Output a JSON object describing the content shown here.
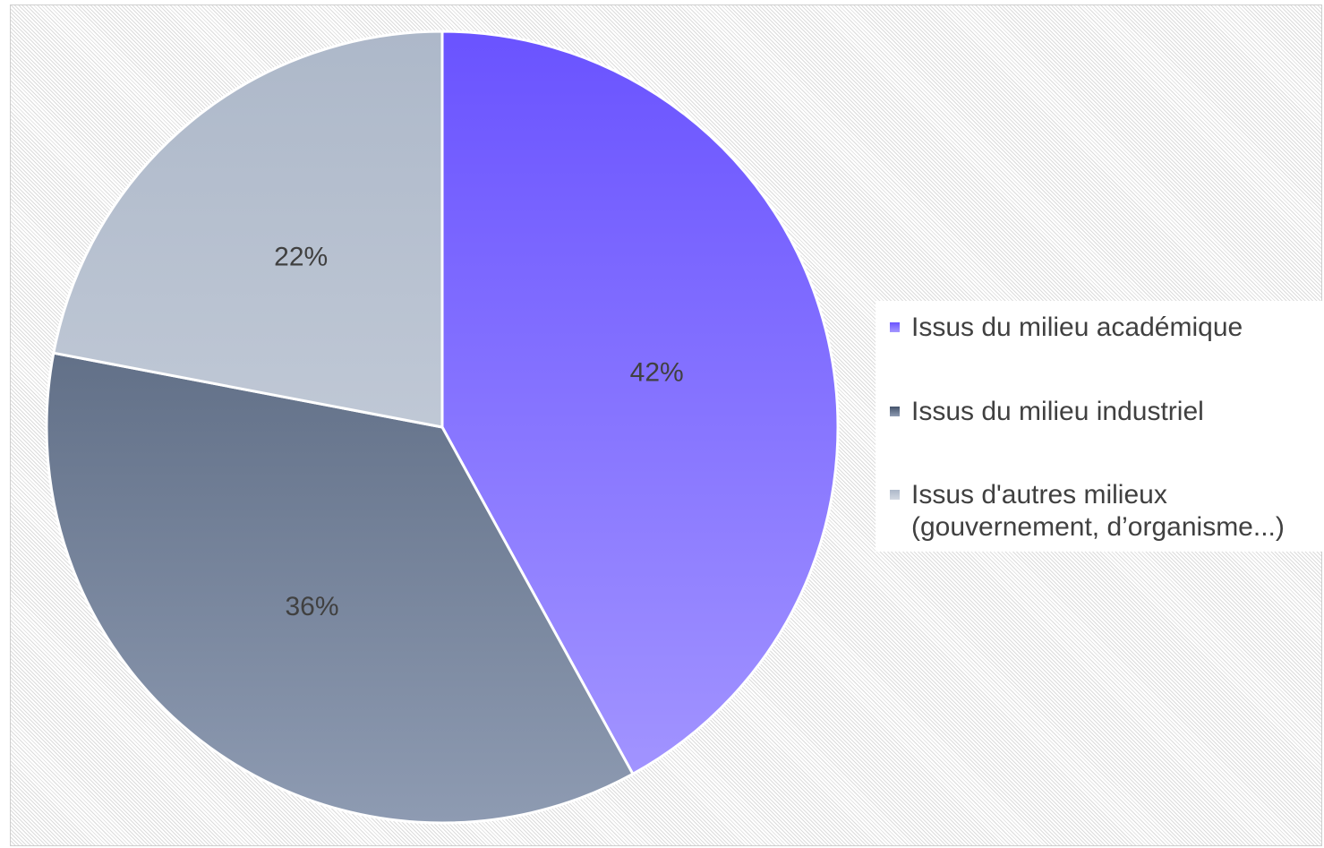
{
  "chart_data": {
    "type": "pie",
    "title": "",
    "categories": [
      "Issus du milieu académique",
      "Issus du milieu industriel",
      "Issus d'autres milieux (gouvernement, d’organisme...)"
    ],
    "values": [
      42,
      36,
      22
    ],
    "data_labels": [
      "42%",
      "36%",
      "22%"
    ],
    "start_angle": "12 o'clock",
    "direction": "clockwise",
    "legend_position": "right",
    "colors": [
      {
        "top": "#6a53ff",
        "bottom": "#a598ff"
      },
      {
        "top": "#44536b",
        "bottom": "#8e9bb2"
      },
      {
        "top": "#adb8c9",
        "bottom": "#d2d8e2"
      }
    ],
    "slice_border_color": "#ffffff"
  }
}
